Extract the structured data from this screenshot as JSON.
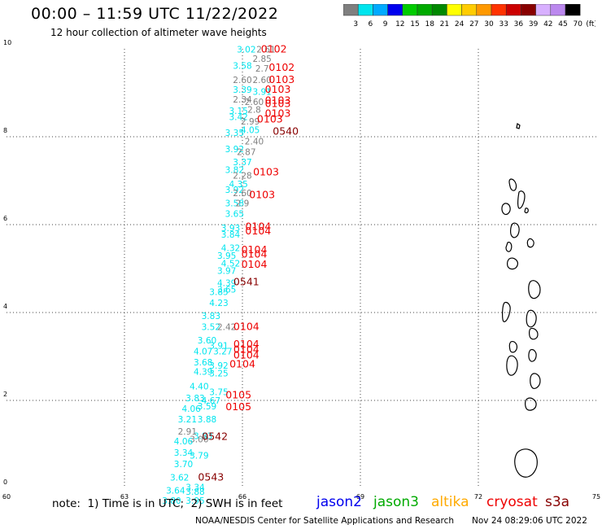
{
  "header": {
    "title": "00:00 – 11:59 UTC 11/22/2022",
    "subtitle": "12 hour collection of altimeter wave heights"
  },
  "color_legend": {
    "labels": [
      "3",
      "6",
      "9",
      "12",
      "15",
      "18",
      "21",
      "24",
      "27",
      "30",
      "33",
      "36",
      "39",
      "42",
      "45",
      "70",
      "(ft)"
    ],
    "colors": [
      "#7f7f7f",
      "#00e5ee",
      "#00aaff",
      "#0000ee",
      "#00cc00",
      "#00aa00",
      "#008800",
      "#ffff00",
      "#ffcc00",
      "#ff9900",
      "#ff3300",
      "#cc0000",
      "#880000",
      "#d8b0ff",
      "#bb88ee",
      "#000000"
    ]
  },
  "footer": {
    "note": "note:  1) Time is in UTC;  2) SWH is in feet",
    "credit": "NOAA/NESDIS Center for Satellite Applications and Research",
    "generated": "Nov 24 08:29:06 UTC 2022"
  },
  "satellites": [
    {
      "name": "jason2",
      "color": "#0000ee"
    },
    {
      "name": "jason3",
      "color": "#00aa00"
    },
    {
      "name": "altika",
      "color": "#ffaa00"
    },
    {
      "name": "cryosat",
      "color": "#ee0000"
    },
    {
      "name": "s3a",
      "color": "#880000"
    }
  ],
  "chart_data": {
    "type": "scatter",
    "title": "00:00 – 11:59 UTC 11/22/2022",
    "subtitle": "12 hour collection of altimeter wave heights",
    "x_ticks": [
      "60",
      "63",
      "66",
      "69",
      "72",
      "75"
    ],
    "y_ticks": [
      "0",
      "2",
      "4",
      "6",
      "8",
      "10"
    ],
    "xlim": [
      60,
      75
    ],
    "ylim": [
      0,
      10
    ],
    "grid": true,
    "unit": "ft",
    "wave_heights": [
      {
        "lon": 66.1,
        "lat": 9.92,
        "label": "3.02",
        "color": "#00e5ee"
      },
      {
        "lon": 66.6,
        "lat": 9.92,
        "label": "2.61",
        "color": "#7f7f7f"
      },
      {
        "lon": 66.5,
        "lat": 9.7,
        "label": "2.85",
        "color": "#7f7f7f"
      },
      {
        "lon": 66.0,
        "lat": 9.55,
        "label": "3.58",
        "color": "#00e5ee"
      },
      {
        "lon": 66.5,
        "lat": 9.48,
        "label": "2.7",
        "color": "#7f7f7f"
      },
      {
        "lon": 66.0,
        "lat": 9.22,
        "label": "2.60",
        "color": "#7f7f7f"
      },
      {
        "lon": 66.5,
        "lat": 9.22,
        "label": "2.60",
        "color": "#7f7f7f"
      },
      {
        "lon": 66.0,
        "lat": 9.0,
        "label": "3.39",
        "color": "#00e5ee"
      },
      {
        "lon": 66.5,
        "lat": 8.95,
        "label": "3.91",
        "color": "#00e5ee"
      },
      {
        "lon": 66.0,
        "lat": 8.78,
        "label": "2.34",
        "color": "#7f7f7f"
      },
      {
        "lon": 66.3,
        "lat": 8.72,
        "label": "2.60",
        "color": "#7f7f7f"
      },
      {
        "lon": 65.9,
        "lat": 8.52,
        "label": "3.15",
        "color": "#00e5ee"
      },
      {
        "lon": 66.3,
        "lat": 8.55,
        "label": "2.8",
        "color": "#7f7f7f"
      },
      {
        "lon": 65.9,
        "lat": 8.38,
        "label": "3.42",
        "color": "#00e5ee"
      },
      {
        "lon": 66.2,
        "lat": 8.28,
        "label": "2.99",
        "color": "#7f7f7f"
      },
      {
        "lon": 66.2,
        "lat": 8.08,
        "label": "4.05",
        "color": "#00e5ee"
      },
      {
        "lon": 65.8,
        "lat": 8.02,
        "label": "3.35",
        "color": "#00e5ee"
      },
      {
        "lon": 66.3,
        "lat": 7.82,
        "label": "2.40",
        "color": "#7f7f7f"
      },
      {
        "lon": 65.8,
        "lat": 7.65,
        "label": "3.92",
        "color": "#00e5ee"
      },
      {
        "lon": 66.1,
        "lat": 7.58,
        "label": "2.87",
        "color": "#7f7f7f"
      },
      {
        "lon": 66.0,
        "lat": 7.35,
        "label": "3.37",
        "color": "#00e5ee"
      },
      {
        "lon": 65.8,
        "lat": 7.18,
        "label": "3.82",
        "color": "#00e5ee"
      },
      {
        "lon": 66.0,
        "lat": 7.05,
        "label": "2.28",
        "color": "#7f7f7f"
      },
      {
        "lon": 65.9,
        "lat": 6.85,
        "label": "4.35",
        "color": "#00e5ee"
      },
      {
        "lon": 65.8,
        "lat": 6.72,
        "label": "3.92",
        "color": "#00e5ee"
      },
      {
        "lon": 66.0,
        "lat": 6.65,
        "label": "2.60",
        "color": "#7f7f7f"
      },
      {
        "lon": 65.8,
        "lat": 6.42,
        "label": "3.58",
        "color": "#00e5ee"
      },
      {
        "lon": 66.0,
        "lat": 6.42,
        "label": "2.9",
        "color": "#7f7f7f"
      },
      {
        "lon": 65.8,
        "lat": 6.18,
        "label": "3.65",
        "color": "#00e5ee"
      },
      {
        "lon": 65.7,
        "lat": 5.85,
        "label": "3.93",
        "color": "#00e5ee"
      },
      {
        "lon": 65.7,
        "lat": 5.7,
        "label": "3.84",
        "color": "#00e5ee"
      },
      {
        "lon": 65.7,
        "lat": 5.4,
        "label": "4.32",
        "color": "#00e5ee"
      },
      {
        "lon": 65.6,
        "lat": 5.22,
        "label": "3.95",
        "color": "#00e5ee"
      },
      {
        "lon": 65.7,
        "lat": 5.05,
        "label": "4.52",
        "color": "#00e5ee"
      },
      {
        "lon": 65.6,
        "lat": 4.88,
        "label": "3.97",
        "color": "#00e5ee"
      },
      {
        "lon": 65.6,
        "lat": 4.6,
        "label": "4.39",
        "color": "#00e5ee"
      },
      {
        "lon": 65.6,
        "lat": 4.45,
        "label": "3.65",
        "color": "#00e5ee"
      },
      {
        "lon": 65.4,
        "lat": 4.4,
        "label": "3.85",
        "color": "#00e5ee"
      },
      {
        "lon": 65.4,
        "lat": 4.15,
        "label": "4.23",
        "color": "#00e5ee"
      },
      {
        "lon": 65.2,
        "lat": 3.85,
        "label": "3.83",
        "color": "#00e5ee"
      },
      {
        "lon": 65.2,
        "lat": 3.6,
        "label": "3.52",
        "color": "#00e5ee"
      },
      {
        "lon": 65.6,
        "lat": 3.6,
        "label": "2.42",
        "color": "#7f7f7f"
      },
      {
        "lon": 65.1,
        "lat": 3.3,
        "label": "3.60",
        "color": "#00e5ee"
      },
      {
        "lon": 65.4,
        "lat": 3.18,
        "label": "3.91",
        "color": "#00e5ee"
      },
      {
        "lon": 65.0,
        "lat": 3.05,
        "label": "4.07",
        "color": "#00e5ee"
      },
      {
        "lon": 65.5,
        "lat": 3.05,
        "label": "3.27",
        "color": "#00e5ee"
      },
      {
        "lon": 65.0,
        "lat": 2.8,
        "label": "3.68",
        "color": "#00e5ee"
      },
      {
        "lon": 65.4,
        "lat": 2.72,
        "label": "3.92",
        "color": "#00e5ee"
      },
      {
        "lon": 65.0,
        "lat": 2.58,
        "label": "4.39",
        "color": "#00e5ee"
      },
      {
        "lon": 65.4,
        "lat": 2.55,
        "label": "3.25",
        "color": "#00e5ee"
      },
      {
        "lon": 64.9,
        "lat": 2.25,
        "label": "4.40",
        "color": "#00e5ee"
      },
      {
        "lon": 65.4,
        "lat": 2.12,
        "label": "3.75",
        "color": "#00e5ee"
      },
      {
        "lon": 64.8,
        "lat": 1.98,
        "label": "3.83",
        "color": "#00e5ee"
      },
      {
        "lon": 65.2,
        "lat": 1.93,
        "label": "4.67",
        "color": "#00e5ee"
      },
      {
        "lon": 65.1,
        "lat": 1.8,
        "label": "3.59",
        "color": "#00e5ee"
      },
      {
        "lon": 64.7,
        "lat": 1.74,
        "label": "4.06",
        "color": "#00e5ee"
      },
      {
        "lon": 64.6,
        "lat": 1.5,
        "label": "3.21",
        "color": "#00e5ee"
      },
      {
        "lon": 65.1,
        "lat": 1.5,
        "label": "3.88",
        "color": "#00e5ee"
      },
      {
        "lon": 64.6,
        "lat": 1.22,
        "label": "2.91",
        "color": "#7f7f7f"
      },
      {
        "lon": 65.0,
        "lat": 1.12,
        "label": "3.83",
        "color": "#00e5ee"
      },
      {
        "lon": 64.9,
        "lat": 1.05,
        "label": "3.00",
        "color": "#7f7f7f"
      },
      {
        "lon": 64.5,
        "lat": 1.0,
        "label": "4.06",
        "color": "#00e5ee"
      },
      {
        "lon": 64.5,
        "lat": 0.74,
        "label": "3.34",
        "color": "#00e5ee"
      },
      {
        "lon": 64.9,
        "lat": 0.68,
        "label": "3.79",
        "color": "#00e5ee"
      },
      {
        "lon": 64.5,
        "lat": 0.48,
        "label": "3.70",
        "color": "#00e5ee"
      },
      {
        "lon": 64.4,
        "lat": 0.18,
        "label": "3.62",
        "color": "#00e5ee"
      },
      {
        "lon": 64.8,
        "lat": -0.05,
        "label": "3.34",
        "color": "#00e5ee"
      },
      {
        "lon": 64.3,
        "lat": -0.12,
        "label": "3.64",
        "color": "#00e5ee"
      },
      {
        "lon": 64.8,
        "lat": -0.15,
        "label": "3.88",
        "color": "#00e5ee"
      },
      {
        "lon": 64.2,
        "lat": -0.35,
        "label": "3.80",
        "color": "#00e5ee"
      },
      {
        "lon": 64.8,
        "lat": -0.35,
        "label": "3.95",
        "color": "#00e5ee"
      }
    ],
    "pass_times": [
      {
        "lon": 66.8,
        "lat": 9.92,
        "label": "0102",
        "color": "#ee0000"
      },
      {
        "lon": 67.0,
        "lat": 9.5,
        "label": "0102",
        "color": "#ee0000"
      },
      {
        "lon": 67.0,
        "lat": 9.22,
        "label": "0103",
        "color": "#ee0000"
      },
      {
        "lon": 66.9,
        "lat": 9.0,
        "label": "0103",
        "color": "#ee0000"
      },
      {
        "lon": 66.9,
        "lat": 8.75,
        "label": "0103",
        "color": "#ee0000"
      },
      {
        "lon": 66.9,
        "lat": 8.68,
        "label": "0103",
        "color": "#ee0000"
      },
      {
        "lon": 66.9,
        "lat": 8.45,
        "label": "0103",
        "color": "#ee0000"
      },
      {
        "lon": 66.7,
        "lat": 8.32,
        "label": "0103",
        "color": "#ee0000"
      },
      {
        "lon": 67.1,
        "lat": 8.05,
        "label": "0540",
        "color": "#880000"
      },
      {
        "lon": 66.6,
        "lat": 7.12,
        "label": "0103",
        "color": "#ee0000"
      },
      {
        "lon": 66.5,
        "lat": 6.6,
        "label": "0103",
        "color": "#ee0000"
      },
      {
        "lon": 66.4,
        "lat": 5.88,
        "label": "0104",
        "color": "#ee0000"
      },
      {
        "lon": 66.4,
        "lat": 5.78,
        "label": "0104",
        "color": "#ee0000"
      },
      {
        "lon": 66.3,
        "lat": 5.35,
        "label": "0104",
        "color": "#ee0000"
      },
      {
        "lon": 66.3,
        "lat": 5.25,
        "label": "0104",
        "color": "#ee0000"
      },
      {
        "lon": 66.3,
        "lat": 5.02,
        "label": "0104",
        "color": "#ee0000"
      },
      {
        "lon": 66.1,
        "lat": 4.62,
        "label": "0541",
        "color": "#880000"
      },
      {
        "lon": 66.1,
        "lat": 3.6,
        "label": "0104",
        "color": "#ee0000"
      },
      {
        "lon": 66.1,
        "lat": 3.2,
        "label": "0104",
        "color": "#ee0000"
      },
      {
        "lon": 66.1,
        "lat": 3.08,
        "label": "0104",
        "color": "#ee0000"
      },
      {
        "lon": 66.1,
        "lat": 2.95,
        "label": "0104",
        "color": "#ee0000"
      },
      {
        "lon": 66.0,
        "lat": 2.75,
        "label": "0104",
        "color": "#ee0000"
      },
      {
        "lon": 65.9,
        "lat": 2.05,
        "label": "0105",
        "color": "#ee0000"
      },
      {
        "lon": 65.9,
        "lat": 1.78,
        "label": "0105",
        "color": "#ee0000"
      },
      {
        "lon": 65.3,
        "lat": 1.1,
        "label": "0542",
        "color": "#880000"
      },
      {
        "lon": 65.2,
        "lat": 0.18,
        "label": "0543",
        "color": "#880000"
      }
    ]
  }
}
